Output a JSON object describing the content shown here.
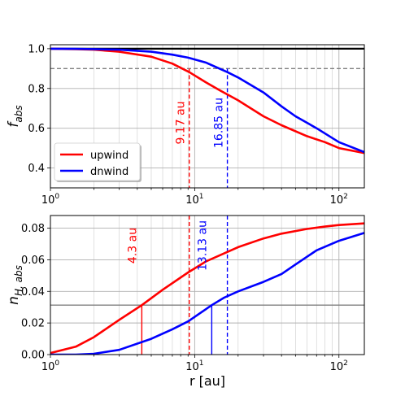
{
  "chart_data": [
    {
      "type": "line",
      "x_scale": "log",
      "xlim": [
        1,
        150
      ],
      "ylim": [
        0.3,
        1.02
      ],
      "ylabel_main": "f",
      "ylabel_sub": "abs",
      "xlabel": "",
      "x_ticks": [
        {
          "value": 1,
          "base": "10",
          "exp": "0"
        },
        {
          "value": 10,
          "base": "10",
          "exp": "1"
        },
        {
          "value": 100,
          "base": "10",
          "exp": "2"
        }
      ],
      "y_ticks": [
        "0.4",
        "0.6",
        "0.8",
        "1.0"
      ],
      "grid": true,
      "legend_position": "lower-left",
      "series": [
        {
          "name": "upwind",
          "color": "#ff0000",
          "x": [
            1,
            1.5,
            2,
            3,
            5,
            7,
            9.17,
            12,
            15,
            20,
            30,
            40,
            60,
            80,
            100,
            150
          ],
          "y": [
            1.0,
            0.998,
            0.995,
            0.985,
            0.96,
            0.925,
            0.882,
            0.83,
            0.79,
            0.74,
            0.66,
            0.615,
            0.56,
            0.53,
            0.5,
            0.475
          ]
        },
        {
          "name": "dnwind",
          "color": "#0000ff",
          "x": [
            1,
            1.5,
            2,
            3,
            5,
            7,
            9,
            12,
            16.85,
            20,
            30,
            40,
            50,
            70,
            100,
            150
          ],
          "y": [
            1.0,
            0.999,
            0.998,
            0.995,
            0.985,
            0.97,
            0.955,
            0.93,
            0.882,
            0.855,
            0.78,
            0.71,
            0.66,
            0.6,
            0.53,
            0.48
          ]
        }
      ],
      "reference_lines": [
        {
          "orientation": "horizontal",
          "y": 1.0,
          "color": "#000000",
          "style": "solid"
        },
        {
          "orientation": "horizontal",
          "y": 0.9,
          "color": "#808080",
          "style": "dashed"
        },
        {
          "orientation": "vertical",
          "x": 9.17,
          "y_top": 0.9,
          "color": "#ff0000",
          "style": "dashed",
          "label": "9.17 au"
        },
        {
          "orientation": "vertical",
          "x": 16.85,
          "y_top": 0.9,
          "color": "#0000ff",
          "style": "dashed",
          "label": "16.85 au"
        }
      ]
    },
    {
      "type": "line",
      "x_scale": "log",
      "xlim": [
        1,
        150
      ],
      "ylim": [
        0,
        0.088
      ],
      "ylabel_main": "n",
      "ylabel_sub": "H, abs",
      "xlabel": "r [au]",
      "x_ticks": [
        {
          "value": 1,
          "base": "10",
          "exp": "0"
        },
        {
          "value": 10,
          "base": "10",
          "exp": "1"
        },
        {
          "value": 100,
          "base": "10",
          "exp": "2"
        }
      ],
      "y_ticks": [
        "0.00",
        "0.02",
        "0.04",
        "0.06",
        "0.08"
      ],
      "grid": true,
      "series": [
        {
          "name": "upwind",
          "color": "#ff0000",
          "x": [
            1,
            1.5,
            2,
            3,
            4.3,
            6,
            9,
            12,
            16,
            20,
            30,
            40,
            60,
            80,
            100,
            150
          ],
          "y": [
            0.001,
            0.005,
            0.011,
            0.022,
            0.0313,
            0.041,
            0.052,
            0.059,
            0.064,
            0.068,
            0.0735,
            0.0765,
            0.0795,
            0.081,
            0.082,
            0.083
          ]
        },
        {
          "name": "dnwind",
          "color": "#0000ff",
          "x": [
            1,
            1.5,
            2,
            3,
            5,
            7,
            9,
            13.13,
            16,
            20,
            30,
            40,
            50,
            70,
            100,
            150
          ],
          "y": [
            0.0,
            0.0,
            0.0005,
            0.003,
            0.01,
            0.016,
            0.021,
            0.0313,
            0.036,
            0.04,
            0.046,
            0.051,
            0.057,
            0.066,
            0.072,
            0.077
          ]
        }
      ],
      "reference_lines": [
        {
          "orientation": "horizontal",
          "y": 0.0313,
          "color": "#808080",
          "style": "solid"
        },
        {
          "orientation": "vertical",
          "x": 9.17,
          "color": "#ff0000",
          "style": "dashed"
        },
        {
          "orientation": "vertical",
          "x": 16.85,
          "color": "#0000ff",
          "style": "dashed"
        },
        {
          "orientation": "vertical",
          "x": 4.3,
          "y_top": 0.0313,
          "color": "#ff0000",
          "style": "solid",
          "label": "4.3 au"
        },
        {
          "orientation": "vertical",
          "x": 13.13,
          "y_top": 0.0313,
          "color": "#0000ff",
          "style": "solid",
          "label": "13.13 au"
        }
      ]
    }
  ]
}
